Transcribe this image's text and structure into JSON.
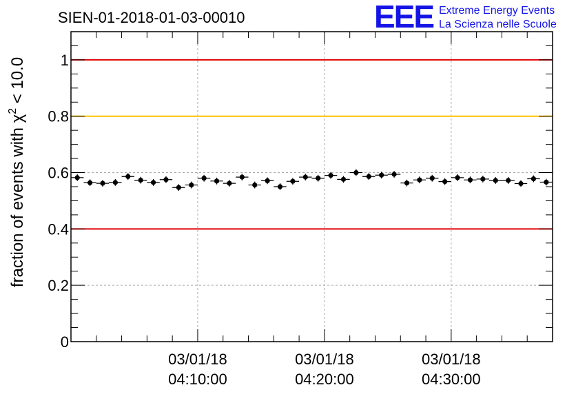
{
  "header": {
    "title": "SIEN-01-2018-01-03-00010",
    "logo_letters": "EEE",
    "logo_line1": "Extreme Energy Events",
    "logo_line2": "La Scienza nelle Scuole",
    "logo_color": "#1414e6"
  },
  "chart_data": {
    "type": "scatter",
    "title": "SIEN-01-2018-01-03-00010",
    "ylabel_main": "fraction of events with χ",
    "ylabel_sup": "2",
    "ylabel_tail": " < 10.0",
    "ylim": [
      0,
      1.1
    ],
    "yticks": [
      0,
      0.2,
      0.4,
      0.6,
      0.8,
      1
    ],
    "ytick_labels": [
      "0",
      "0.2",
      "0.4",
      "0.6",
      "0.8",
      "1"
    ],
    "xlim": [
      "03/01/18 04:00:00",
      "03/01/18 04:38:00"
    ],
    "xticks": [
      {
        "date": "03/01/18",
        "time": "04:10:00"
      },
      {
        "date": "03/01/18",
        "time": "04:20:00"
      },
      {
        "date": "03/01/18",
        "time": "04:30:00"
      }
    ],
    "grid": true,
    "reference_lines": [
      {
        "y": 1.0,
        "color": "#e00000"
      },
      {
        "y": 0.8,
        "color": "#ffc000"
      },
      {
        "y": 0.4,
        "color": "#e00000"
      }
    ],
    "series": [
      {
        "x": [
          "04:00:30",
          "04:01:30",
          "04:02:30",
          "04:03:30",
          "04:04:30",
          "04:05:30",
          "04:06:30",
          "04:07:30",
          "04:08:30",
          "04:09:30",
          "04:10:30",
          "04:11:30",
          "04:12:30",
          "04:13:30",
          "04:14:30",
          "04:15:30",
          "04:16:30",
          "04:17:30",
          "04:18:30",
          "04:19:30",
          "04:20:30",
          "04:21:30",
          "04:22:30",
          "04:23:30",
          "04:24:30",
          "04:25:30",
          "04:26:30",
          "04:27:30",
          "04:28:30",
          "04:29:30",
          "04:30:30",
          "04:31:30",
          "04:32:30",
          "04:33:30",
          "04:34:30",
          "04:35:30",
          "04:36:30",
          "04:37:30"
        ],
        "y": [
          0.582,
          0.564,
          0.562,
          0.565,
          0.586,
          0.573,
          0.565,
          0.575,
          0.547,
          0.556,
          0.58,
          0.57,
          0.562,
          0.584,
          0.556,
          0.571,
          0.55,
          0.569,
          0.584,
          0.58,
          0.59,
          0.576,
          0.6,
          0.586,
          0.591,
          0.594,
          0.563,
          0.574,
          0.58,
          0.568,
          0.582,
          0.574,
          0.577,
          0.572,
          0.572,
          0.561,
          0.578,
          0.566
        ],
        "yerr": 0.012,
        "color": "#000000"
      }
    ]
  }
}
